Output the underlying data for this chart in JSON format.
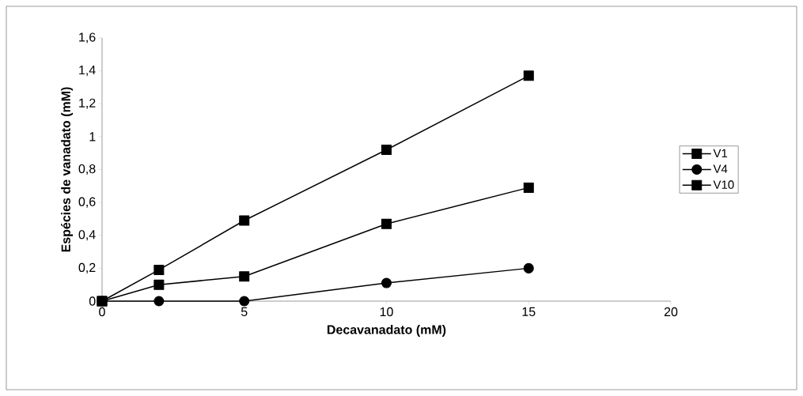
{
  "chart_data": {
    "type": "line",
    "xlabel": "Decavanadato (mM)",
    "ylabel": "Espécies de vanadato (mM)",
    "xlim": [
      0,
      20
    ],
    "xticks": [
      0,
      5,
      10,
      15,
      20
    ],
    "ylim": [
      0,
      1.6
    ],
    "yticks": [
      0,
      {
        "value": 0.2,
        "label": "0,2"
      },
      {
        "value": 0.4,
        "label": "0,4"
      },
      {
        "value": 0.6,
        "label": "0,6"
      },
      {
        "value": 0.8,
        "label": "0,8"
      },
      1,
      {
        "value": 1.2,
        "label": "1,2"
      },
      {
        "value": 1.4,
        "label": "1,4"
      },
      {
        "value": 1.6,
        "label": "1,6"
      }
    ],
    "x": [
      0,
      2,
      5,
      10,
      15
    ],
    "series": [
      {
        "name": "V1",
        "color": "#000000",
        "marker": "square",
        "values": [
          0,
          0.1,
          0.15,
          0.47,
          0.69
        ]
      },
      {
        "name": "V4",
        "color": "#000000",
        "marker": "circle",
        "values": [
          0,
          0,
          0,
          0.11,
          0.2
        ]
      },
      {
        "name": "V10",
        "color": "#000000",
        "marker": "square",
        "values": [
          0,
          0.19,
          0.49,
          0.92,
          1.37
        ]
      }
    ],
    "grid": false,
    "legend": "right",
    "line_style": "solid"
  }
}
